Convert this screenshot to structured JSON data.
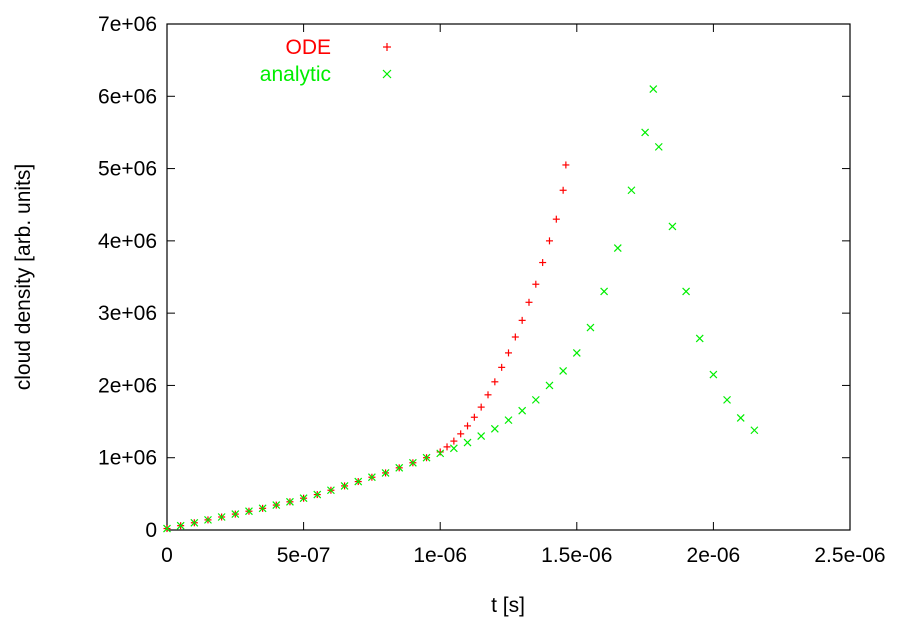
{
  "chart_data": {
    "type": "scatter",
    "xlabel": "t [s]",
    "ylabel": "cloud density [arb. units]",
    "xlim": [
      0,
      2.5e-06
    ],
    "ylim": [
      0,
      7000000.0
    ],
    "x_ticks": [
      0,
      5e-07,
      1e-06,
      1.5e-06,
      2e-06,
      2.5e-06
    ],
    "x_tick_labels": [
      "0",
      "5e-07",
      "1e-06",
      "1.5e-06",
      "2e-06",
      "2.5e-06"
    ],
    "y_ticks": [
      0,
      1000000.0,
      2000000.0,
      3000000.0,
      4000000.0,
      5000000.0,
      6000000.0,
      7000000.0
    ],
    "y_tick_labels": [
      "0",
      "1e+06",
      "2e+06",
      "3e+06",
      "4e+06",
      "5e+06",
      "6e+06",
      "7e+06"
    ],
    "grid": false,
    "legend_position": "top-left",
    "series": [
      {
        "name": "ODE",
        "marker": "plus",
        "color": "#ff0000",
        "x": [
          0,
          5e-08,
          1e-07,
          1.5e-07,
          2e-07,
          2.5e-07,
          3e-07,
          3.5e-07,
          4e-07,
          4.5e-07,
          5e-07,
          5.5e-07,
          6e-07,
          6.5e-07,
          7e-07,
          7.5e-07,
          8e-07,
          8.5e-07,
          9e-07,
          9.5e-07,
          1e-06,
          1.025e-06,
          1.05e-06,
          1.075e-06,
          1.1e-06,
          1.125e-06,
          1.15e-06,
          1.175e-06,
          1.2e-06,
          1.225e-06,
          1.25e-06,
          1.275e-06,
          1.3e-06,
          1.325e-06,
          1.35e-06,
          1.375e-06,
          1.4e-06,
          1.425e-06,
          1.45e-06,
          1.46e-06
        ],
        "y": [
          20000,
          60000,
          100000,
          140000,
          180000,
          220000,
          260000,
          300000,
          345000,
          390000,
          440000,
          490000,
          550000,
          610000,
          670000,
          730000,
          790000,
          860000,
          930000,
          1000000,
          1080000,
          1150000,
          1230000,
          1330000,
          1440000,
          1560000,
          1700000,
          1870000,
          2050000,
          2250000,
          2450000,
          2670000,
          2900000,
          3150000,
          3400000,
          3700000,
          4000000,
          4300000,
          4700000,
          5050000
        ]
      },
      {
        "name": "analytic",
        "marker": "cross",
        "color": "#00ee00",
        "x": [
          0,
          5e-08,
          1e-07,
          1.5e-07,
          2e-07,
          2.5e-07,
          3e-07,
          3.5e-07,
          4e-07,
          4.5e-07,
          5e-07,
          5.5e-07,
          6e-07,
          6.5e-07,
          7e-07,
          7.5e-07,
          8e-07,
          8.5e-07,
          9e-07,
          9.5e-07,
          1e-06,
          1.05e-06,
          1.1e-06,
          1.15e-06,
          1.2e-06,
          1.25e-06,
          1.3e-06,
          1.35e-06,
          1.4e-06,
          1.45e-06,
          1.5e-06,
          1.55e-06,
          1.6e-06,
          1.65e-06,
          1.7e-06,
          1.75e-06,
          1.78e-06,
          1.8e-06,
          1.85e-06,
          1.9e-06,
          1.95e-06,
          2e-06,
          2.05e-06,
          2.1e-06,
          2.15e-06
        ],
        "y": [
          20000,
          60000,
          100000,
          140000,
          180000,
          220000,
          260000,
          300000,
          345000,
          390000,
          440000,
          490000,
          550000,
          610000,
          670000,
          730000,
          790000,
          860000,
          930000,
          1000000,
          1060000,
          1130000,
          1210000,
          1300000,
          1400000,
          1520000,
          1650000,
          1800000,
          2000000,
          2200000,
          2450000,
          2800000,
          3300000,
          3900000,
          4700000,
          5500000,
          6100000,
          5300000,
          4200000,
          3300000,
          2650000,
          2150000,
          1800000,
          1550000,
          1380000
        ]
      }
    ]
  }
}
